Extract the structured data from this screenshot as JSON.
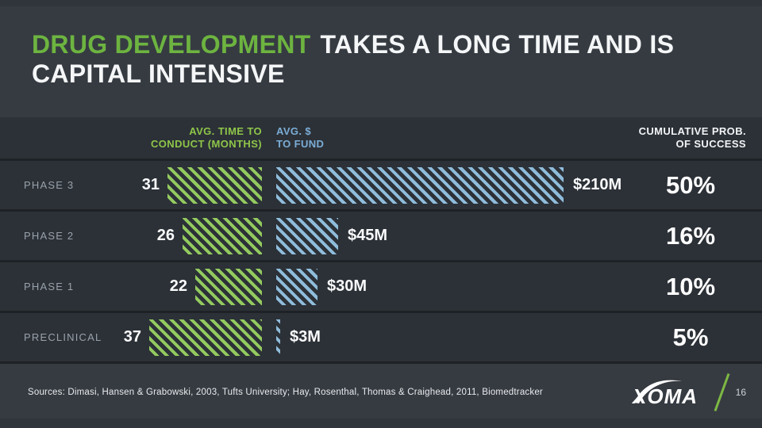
{
  "title": {
    "highlight": "DRUG DEVELOPMENT",
    "rest_line1": "TAKES A LONG TIME AND IS",
    "rest_line2": "CAPITAL INTENSIVE"
  },
  "table": {
    "headers": {
      "time_line1": "AVG. TIME TO",
      "time_line2": "CONDUCT (MONTHS)",
      "fund_line1": "AVG. $",
      "fund_line2": "TO FUND",
      "prob_line1": "CUMULATIVE PROB.",
      "prob_line2": "OF SUCCESS"
    },
    "rows": [
      {
        "label": "PHASE 3",
        "months": 31,
        "fund_label": "$210M",
        "fund_millions": 210,
        "success_prob": "50%"
      },
      {
        "label": "PHASE 2",
        "months": 26,
        "fund_label": "$45M",
        "fund_millions": 45,
        "success_prob": "16%"
      },
      {
        "label": "PHASE 1",
        "months": 22,
        "fund_label": "$30M",
        "fund_millions": 30,
        "success_prob": "10%"
      },
      {
        "label": "PRECLINICAL",
        "months": 37,
        "fund_label": "$3M",
        "fund_millions": 3,
        "success_prob": "5%"
      }
    ]
  },
  "footer": {
    "sources": "Sources:  Dimasi, Hansen & Grabowski, 2003, Tufts University;  Hay, Rosenthal, Thomas & Craighead, 2011, Biomedtracker",
    "logo_text": "XOMA",
    "page_number": "16"
  },
  "colors": {
    "slide_bg": "#363b42",
    "band_bg": "#2c3137",
    "divider": "#1e2226",
    "edge_strip": "#30353b",
    "title_green": "#6db440",
    "header_green": "#8ec549",
    "header_blue": "#7badd6",
    "bar_green": "#93ca5f",
    "bar_blue": "#8fbcdb",
    "accent_green": "#7db843"
  },
  "chart_data": {
    "type": "bar",
    "orientation": "horizontal",
    "title": "DRUG DEVELOPMENT TAKES A LONG TIME AND IS CAPITAL INTENSIVE",
    "categories": [
      "PHASE 3",
      "PHASE 2",
      "PHASE 1",
      "PRECLINICAL"
    ],
    "series": [
      {
        "name": "AVG. TIME TO CONDUCT (MONTHS)",
        "values": [
          31,
          26,
          22,
          37
        ],
        "color": "#93ca5f",
        "pattern": "diagonal-hatch",
        "alignment": "right-anchored"
      },
      {
        "name": "AVG. $ TO FUND ($M)",
        "values": [
          210,
          45,
          30,
          3
        ],
        "labels": [
          "$210M",
          "$45M",
          "$30M",
          "$3M"
        ],
        "color": "#8fbcdb",
        "pattern": "diagonal-hatch",
        "alignment": "left-anchored"
      },
      {
        "name": "CUMULATIVE PROB. OF SUCCESS (%)",
        "values": [
          50,
          16,
          10,
          5
        ],
        "labels": [
          "50%",
          "16%",
          "10%",
          "5%"
        ],
        "display": "text-only"
      }
    ],
    "legend": "column headers",
    "grid": false
  }
}
